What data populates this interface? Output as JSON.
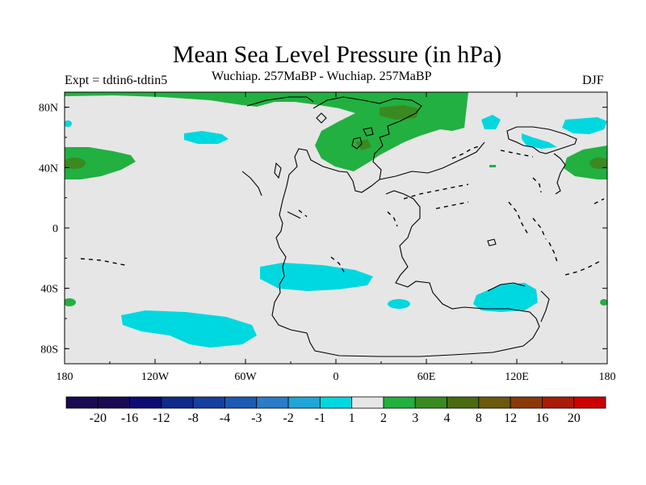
{
  "title": "Mean Sea Level Pressure (in hPa)",
  "left_label": "Expt = tdtin6-tdtin5",
  "center_label": "Wuchiap. 257MaBP - Wuchiap. 257MaBP",
  "right_label": "DJF",
  "x_ticks": [
    "180",
    "120W",
    "60W",
    "0",
    "60E",
    "120E",
    "180"
  ],
  "y_ticks": [
    "80N",
    "40N",
    "0",
    "40S",
    "80S"
  ],
  "colorbar": {
    "labels": [
      "-20",
      "-16",
      "-12",
      "-8",
      "-4",
      "-3",
      "-2",
      "-1",
      "1",
      "2",
      "3",
      "4",
      "8",
      "12",
      "16",
      "20"
    ],
    "colors": [
      "#1a0a52",
      "#0d0d73",
      "#102a8a",
      "#1540a0",
      "#1c5bb4",
      "#2a7cc8",
      "#1fa5d8",
      "#00d8e0",
      "#e6e6e6",
      "#22b040",
      "#3a8a20",
      "#4a6a10",
      "#6b5a0d",
      "#8a3a0a",
      "#a81c08",
      "#cc0000"
    ]
  },
  "colors": {
    "background_field": "#e6e6e6",
    "positive_1": "#22b040",
    "positive_2": "#3a8a20",
    "negative_1": "#00d8e0"
  }
}
